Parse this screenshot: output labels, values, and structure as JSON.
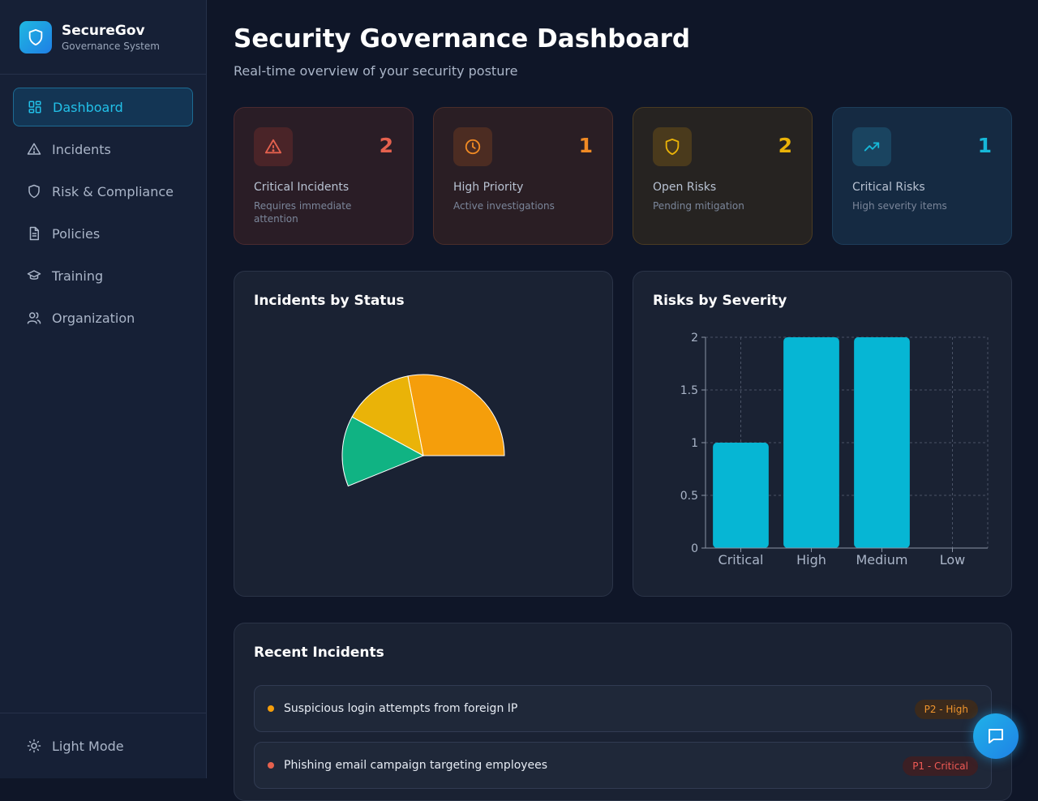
{
  "brand": {
    "name": "SecureGov",
    "subtitle": "Governance System"
  },
  "nav": [
    {
      "label": "Dashboard",
      "icon": "grid-icon",
      "active": true
    },
    {
      "label": "Incidents",
      "icon": "alert-triangle-icon"
    },
    {
      "label": "Risk & Compliance",
      "icon": "shield-icon"
    },
    {
      "label": "Policies",
      "icon": "document-icon"
    },
    {
      "label": "Training",
      "icon": "graduation-cap-icon"
    },
    {
      "label": "Organization",
      "icon": "users-icon"
    }
  ],
  "footer": {
    "theme_toggle_label": "Light Mode"
  },
  "header": {
    "title": "Security Governance Dashboard",
    "subtitle": "Real-time overview of your security posture"
  },
  "stats": [
    {
      "value": "2",
      "label": "Critical Incidents",
      "description": "Requires immediate attention",
      "color": "#e5614e",
      "icon": "alert-triangle-icon"
    },
    {
      "value": "1",
      "label": "High Priority",
      "description": "Active investigations",
      "color": "#f08a24",
      "icon": "clock-icon"
    },
    {
      "value": "2",
      "label": "Open Risks",
      "description": "Pending mitigation",
      "color": "#eab308",
      "icon": "shield-icon"
    },
    {
      "value": "1",
      "label": "Critical Risks",
      "description": "High severity items",
      "color": "#16b8d8",
      "icon": "trending-up-icon"
    }
  ],
  "incidents_chart": {
    "title": "Incidents by Status",
    "chart_data": {
      "type": "pie",
      "slices": [
        {
          "value": 2,
          "color": "#f59e0b"
        },
        {
          "value": 1,
          "color": "#eab308"
        },
        {
          "value": 1,
          "color": "#10b383"
        }
      ]
    }
  },
  "risks_chart": {
    "title": "Risks by Severity",
    "chart_data": {
      "type": "bar",
      "categories": [
        "Critical",
        "High",
        "Medium",
        "Low"
      ],
      "values": [
        1,
        2,
        2,
        0
      ],
      "yticks": [
        "0",
        "0.5",
        "1",
        "1.5",
        "2"
      ],
      "ylim": [
        0,
        2
      ],
      "grid": true,
      "color": "#06b6d4"
    }
  },
  "recent": {
    "title": "Recent Incidents",
    "items": [
      {
        "title": "Suspicious login attempts from foreign IP",
        "badge": "P2 - High",
        "dot_color": "#f59e0b",
        "badge_bg": "#3b2a1c",
        "badge_color": "#f0952d"
      },
      {
        "title": "Phishing email campaign targeting employees",
        "badge": "P1 - Critical",
        "dot_color": "#e5614e",
        "badge_bg": "#3b1f24",
        "badge_color": "#ef5a55"
      }
    ]
  }
}
